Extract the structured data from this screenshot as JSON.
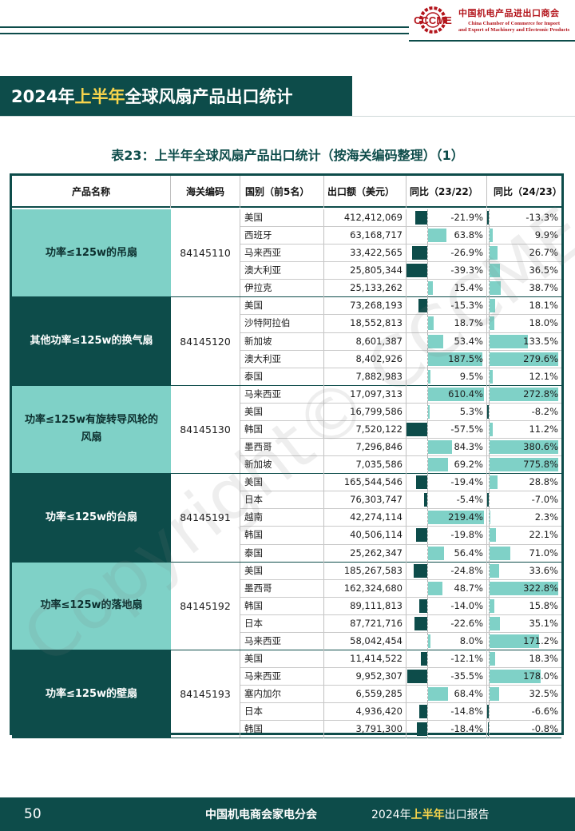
{
  "logo": {
    "mark_text": "CCCME",
    "name_cn": "中国机电产品进出口商会",
    "name_en_line1": "China Chamber of Commerce for Import",
    "name_en_line2": "and Export of Machinery and Electronic Products"
  },
  "page_title": {
    "part1": "2024年",
    "highlight": "上半年",
    "part2": "全球风扇产品出口统计"
  },
  "table_caption": "表23：上半年全球风扇产品出口统计（按海关编码整理）（1）",
  "table": {
    "headers": [
      "产品名称",
      "海关编码",
      "国别（前5名）",
      "出口额（美元）",
      "同比（23/22）",
      "同比（24/23）"
    ],
    "groups": [
      {
        "name": "功率≤125w的吊扇",
        "code": "84145110",
        "style": "light",
        "rows": [
          {
            "country": "美国",
            "amount": "412,412,069",
            "yoy1": "-21.9%",
            "yoy1_value": -21.9,
            "yoy2": "-13.3%",
            "yoy2_value": -13.3
          },
          {
            "country": "西班牙",
            "amount": "63,168,717",
            "yoy1": "63.8%",
            "yoy1_value": 63.8,
            "yoy2": "9.9%",
            "yoy2_value": 9.9
          },
          {
            "country": "马来西亚",
            "amount": "33,422,565",
            "yoy1": "-26.9%",
            "yoy1_value": -26.9,
            "yoy2": "26.7%",
            "yoy2_value": 26.7
          },
          {
            "country": "澳大利亚",
            "amount": "25,805,344",
            "yoy1": "-39.3%",
            "yoy1_value": -39.3,
            "yoy2": "36.5%",
            "yoy2_value": 36.5
          },
          {
            "country": "伊拉克",
            "amount": "25,133,262",
            "yoy1": "15.4%",
            "yoy1_value": 15.4,
            "yoy2": "38.7%",
            "yoy2_value": 38.7
          }
        ]
      },
      {
        "name": "其他功率≤125w的换气扇",
        "code": "84145120",
        "style": "dark",
        "rows": [
          {
            "country": "美国",
            "amount": "73,268,193",
            "yoy1": "-15.3%",
            "yoy1_value": -15.3,
            "yoy2": "18.1%",
            "yoy2_value": 18.1
          },
          {
            "country": "沙特阿拉伯",
            "amount": "18,552,813",
            "yoy1": "18.7%",
            "yoy1_value": 18.7,
            "yoy2": "18.0%",
            "yoy2_value": 18.0
          },
          {
            "country": "新加坡",
            "amount": "8,601,387",
            "yoy1": "53.4%",
            "yoy1_value": 53.4,
            "yoy2": "133.5%",
            "yoy2_value": 133.5
          },
          {
            "country": "澳大利亚",
            "amount": "8,402,926",
            "yoy1": "187.5%",
            "yoy1_value": 187.5,
            "yoy2": "279.6%",
            "yoy2_value": 279.6
          },
          {
            "country": "泰国",
            "amount": "7,882,983",
            "yoy1": "9.5%",
            "yoy1_value": 9.5,
            "yoy2": "12.1%",
            "yoy2_value": 12.1
          }
        ]
      },
      {
        "name": "功率≤125w有旋转导风轮的风扇",
        "code": "84145130",
        "style": "light",
        "rows": [
          {
            "country": "马来西亚",
            "amount": "17,097,313",
            "yoy1": "610.4%",
            "yoy1_value": 610.4,
            "yoy2": "272.8%",
            "yoy2_value": 272.8
          },
          {
            "country": "美国",
            "amount": "16,799,586",
            "yoy1": "5.3%",
            "yoy1_value": 5.3,
            "yoy2": "-8.2%",
            "yoy2_value": -8.2
          },
          {
            "country": "韩国",
            "amount": "7,520,122",
            "yoy1": "-57.5%",
            "yoy1_value": -57.5,
            "yoy2": "11.2%",
            "yoy2_value": 11.2
          },
          {
            "country": "墨西哥",
            "amount": "7,296,846",
            "yoy1": "84.3%",
            "yoy1_value": 84.3,
            "yoy2": "380.6%",
            "yoy2_value": 380.6
          },
          {
            "country": "新加坡",
            "amount": "7,035,586",
            "yoy1": "69.2%",
            "yoy1_value": 69.2,
            "yoy2": "775.8%",
            "yoy2_value": 775.8
          }
        ]
      },
      {
        "name": "功率≤125w的台扇",
        "code": "84145191",
        "style": "dark",
        "rows": [
          {
            "country": "美国",
            "amount": "165,544,546",
            "yoy1": "-19.4%",
            "yoy1_value": -19.4,
            "yoy2": "28.8%",
            "yoy2_value": 28.8
          },
          {
            "country": "日本",
            "amount": "76,303,747",
            "yoy1": "-5.4%",
            "yoy1_value": -5.4,
            "yoy2": "-7.0%",
            "yoy2_value": -7.0
          },
          {
            "country": "越南",
            "amount": "42,274,114",
            "yoy1": "219.4%",
            "yoy1_value": 219.4,
            "yoy2": "2.3%",
            "yoy2_value": 2.3
          },
          {
            "country": "韩国",
            "amount": "40,506,114",
            "yoy1": "-19.8%",
            "yoy1_value": -19.8,
            "yoy2": "22.1%",
            "yoy2_value": 22.1
          },
          {
            "country": "泰国",
            "amount": "25,262,347",
            "yoy1": "56.4%",
            "yoy1_value": 56.4,
            "yoy2": "71.0%",
            "yoy2_value": 71.0
          }
        ]
      },
      {
        "name": "功率≤125w的落地扇",
        "code": "84145192",
        "style": "light",
        "rows": [
          {
            "country": "美国",
            "amount": "185,267,583",
            "yoy1": "-24.8%",
            "yoy1_value": -24.8,
            "yoy2": "33.6%",
            "yoy2_value": 33.6
          },
          {
            "country": "墨西哥",
            "amount": "162,324,680",
            "yoy1": "48.7%",
            "yoy1_value": 48.7,
            "yoy2": "322.8%",
            "yoy2_value": 322.8
          },
          {
            "country": "韩国",
            "amount": "89,111,813",
            "yoy1": "-14.0%",
            "yoy1_value": -14.0,
            "yoy2": "15.8%",
            "yoy2_value": 15.8
          },
          {
            "country": "日本",
            "amount": "87,721,716",
            "yoy1": "-22.6%",
            "yoy1_value": -22.6,
            "yoy2": "35.1%",
            "yoy2_value": 35.1
          },
          {
            "country": "马来西亚",
            "amount": "58,042,454",
            "yoy1": "8.0%",
            "yoy1_value": 8.0,
            "yoy2": "171.2%",
            "yoy2_value": 171.2
          }
        ]
      },
      {
        "name": "功率≤125w的壁扇",
        "code": "84145193",
        "style": "dark",
        "rows": [
          {
            "country": "美国",
            "amount": "11,414,522",
            "yoy1": "-12.1%",
            "yoy1_value": -12.1,
            "yoy2": "18.3%",
            "yoy2_value": 18.3
          },
          {
            "country": "马来西亚",
            "amount": "9,952,307",
            "yoy1": "-35.5%",
            "yoy1_value": -35.5,
            "yoy2": "178.0%",
            "yoy2_value": 178.0
          },
          {
            "country": "塞内加尔",
            "amount": "6,559,285",
            "yoy1": "68.4%",
            "yoy1_value": 68.4,
            "yoy2": "32.5%",
            "yoy2_value": 32.5
          },
          {
            "country": "日本",
            "amount": "4,936,420",
            "yoy1": "-14.8%",
            "yoy1_value": -14.8,
            "yoy2": "-6.6%",
            "yoy2_value": -6.6
          },
          {
            "country": "韩国",
            "amount": "3,791,300",
            "yoy1": "-18.4%",
            "yoy1_value": -18.4,
            "yoy2": "-0.8%",
            "yoy2_value": -0.8
          }
        ]
      }
    ]
  },
  "watermark": "Copyright© CCCME",
  "footer": {
    "page_number": "50",
    "org": "中国机电商会家电分会",
    "report_year": "2024年",
    "report_highlight": "上半年",
    "report_suffix": "出口报告"
  },
  "colors": {
    "brand_dark": "#0d4c4a",
    "brand_light": "#7fd1c7",
    "accent_yellow": "#f7d44c",
    "logo_red": "#b3141b"
  }
}
